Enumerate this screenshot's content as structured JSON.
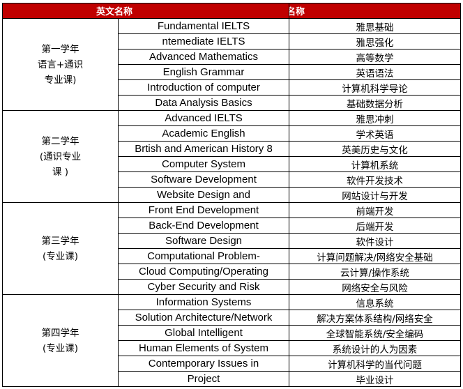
{
  "header": {
    "col_en": "英文名称",
    "col_zh": "中文名称"
  },
  "years": [
    {
      "label_lines": [
        "第一学年",
        "语言+通识",
        "专业课)"
      ],
      "courses": [
        {
          "en": "Fundamental IELTS",
          "zh": "雅思基础"
        },
        {
          "en": "ntemediate IELTS",
          "zh": "雅思强化"
        },
        {
          "en": "Advanced Mathematics",
          "zh": "高等数学"
        },
        {
          "en": "English Grammar",
          "zh": "英语语法"
        },
        {
          "en": "Introduction of computer",
          "zh": "计算机科学导论"
        },
        {
          "en": "Data Analysis Basics",
          "zh": "基础数据分析"
        }
      ]
    },
    {
      "label_lines": [
        "第二学年",
        "(通识专业",
        "课 )"
      ],
      "courses": [
        {
          "en": "Advanced IELTS",
          "zh": "雅思冲刺"
        },
        {
          "en": "Academic English",
          "zh": "学术英语"
        },
        {
          "en": "Brtish and American History 8",
          "zh": "英美历史与文化"
        },
        {
          "en": "Computer System",
          "zh": "计算机系统"
        },
        {
          "en": "Software Development",
          "zh": "软件开发技术"
        },
        {
          "en": "Website Design and",
          "zh": "网站设计与开发"
        }
      ]
    },
    {
      "label_lines": [
        "第三学年",
        "(专业课)"
      ],
      "courses": [
        {
          "en": "Front End Development",
          "zh": "前端开发"
        },
        {
          "en": "Back-End Development",
          "zh": "后端开发"
        },
        {
          "en": "Software Design",
          "zh": "软件设计"
        },
        {
          "en": "Computational Problem-",
          "zh": "计算问题解决/网络安全基础"
        },
        {
          "en": "Cloud Computing/Operating",
          "zh": "云计算/操作系统"
        },
        {
          "en": "Cyber Security and Risk",
          "zh": "网络安全与风险"
        }
      ]
    },
    {
      "label_lines": [
        "第四学年",
        "(专业课)"
      ],
      "courses": [
        {
          "en": "Information Systems",
          "zh": "信息系统"
        },
        {
          "en": "Solution Architecture/Network",
          "zh": "解决方案体系结构/网络安全"
        },
        {
          "en": "Global Intelligent",
          "zh": "全球智能系统/安全编码"
        },
        {
          "en": "Human Elements of System",
          "zh": "系统设计的人为因素"
        },
        {
          "en": "Contemporary Issues in",
          "zh": "计算机科学的当代问题"
        },
        {
          "en": "Project",
          "zh": "毕业设计"
        }
      ]
    }
  ],
  "colors": {
    "header_bg": "#c00000",
    "header_text": "#ffffff",
    "border": "#000000"
  }
}
